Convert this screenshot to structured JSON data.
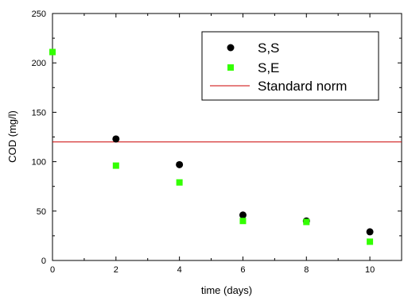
{
  "chart_data": {
    "type": "scatter",
    "title": "",
    "xlabel": "time (days)",
    "ylabel": "COD (mg/l)",
    "xlim": [
      0,
      11
    ],
    "ylim": [
      0,
      250
    ],
    "x_ticks": [
      0,
      2,
      4,
      6,
      8,
      10
    ],
    "y_ticks": [
      0,
      50,
      100,
      150,
      200,
      250
    ],
    "grid": false,
    "legend_position": "top-right",
    "series": [
      {
        "name": "S,S",
        "marker": "circle",
        "color": "#000000",
        "x": [
          2,
          4,
          6,
          8,
          10
        ],
        "y": [
          123,
          97,
          46,
          40,
          29
        ]
      },
      {
        "name": "S,E",
        "marker": "square",
        "color": "#33ff00",
        "x": [
          0,
          2,
          4,
          6,
          8,
          10
        ],
        "y": [
          211,
          96,
          79,
          40,
          39,
          19
        ]
      }
    ],
    "reference_line": {
      "name": "Standard norm",
      "y": 120,
      "color": "#cc0000"
    }
  }
}
